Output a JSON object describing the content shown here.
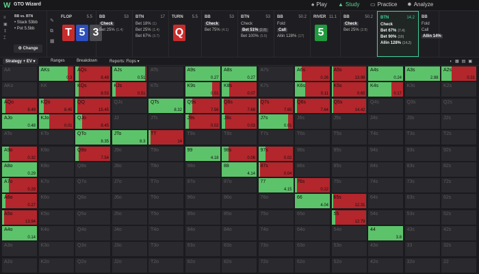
{
  "app": {
    "name": "GTO Wizard"
  },
  "nav": [
    {
      "label": "Play",
      "icon": "spade-icon",
      "active": false
    },
    {
      "label": "Study",
      "icon": "graduation-cap-icon",
      "active": true
    },
    {
      "label": "Practice",
      "icon": "cards-icon",
      "active": false
    },
    {
      "label": "Analyze",
      "icon": "sun-icon",
      "active": false
    }
  ],
  "spot": {
    "title": "BB vs. BTN",
    "stack": "Stack 53bb",
    "pot": "Pot 5.5bb",
    "change_label": "Change"
  },
  "panels": [
    {
      "head": "FLOP",
      "num": "5.5",
      "cards": [
        {
          "rank": "T",
          "color": "#c72c2c"
        },
        {
          "rank": "5",
          "color": "#2d4fbf"
        },
        {
          "rank": "3",
          "color": "#4a4a4f"
        }
      ]
    },
    {
      "head": "BB",
      "num": "53",
      "options": [
        {
          "label": "Check",
          "amount": "",
          "selected": true
        },
        {
          "label": "Bet 25%",
          "amount": "(1.4)",
          "selected": false
        }
      ]
    },
    {
      "head": "BTN",
      "num": "17",
      "options": [
        {
          "label": "Bet 18%",
          "amount": "(1)",
          "selected": false
        },
        {
          "label": "Bet 25%",
          "amount": "(1.4)",
          "selected": false
        },
        {
          "label": "Bet 67%",
          "amount": "(3.7)",
          "selected": false
        }
      ]
    },
    {
      "head": "TURN",
      "num": "5.5",
      "cards": [
        {
          "rank": "Q",
          "color": "#c72c2c"
        }
      ]
    },
    {
      "head": "BB",
      "num": "53",
      "options": [
        {
          "label": "Check",
          "amount": "",
          "selected": true
        },
        {
          "label": "Bet 75%",
          "amount": "(4.1)",
          "selected": false
        }
      ]
    },
    {
      "head": "BTN",
      "num": "53",
      "options": [
        {
          "label": "Check",
          "amount": "",
          "selected": false
        },
        {
          "label": "Bet 51%",
          "amount": "(2.8)",
          "selected": true
        },
        {
          "label": "Bet 100%",
          "amount": "(5.5)",
          "selected": false
        }
      ]
    },
    {
      "head": "BB",
      "num": "50.2",
      "options": [
        {
          "label": "Fold",
          "amount": "",
          "selected": false
        },
        {
          "label": "Call",
          "amount": "",
          "selected": true
        },
        {
          "label": "Allin 128%",
          "amount": "(17)",
          "selected": false
        }
      ]
    },
    {
      "head": "RIVER",
      "num": "11.1",
      "cards": [
        {
          "rank": "5",
          "color": "#1f9a3e"
        }
      ]
    },
    {
      "head": "BB",
      "num": "50.2",
      "options": [
        {
          "label": "Check",
          "amount": "",
          "selected": true
        },
        {
          "label": "Bet 25%",
          "amount": "(2.8)",
          "selected": false
        }
      ]
    },
    {
      "head": "BTN",
      "num": "14.2",
      "active": true,
      "options": [
        {
          "label": "Check",
          "amount": "",
          "selected": false
        },
        {
          "label": "Bet 67%",
          "amount": "(7.4)",
          "selected": false
        },
        {
          "label": "Bet 90%",
          "amount": "(10)",
          "selected": false
        },
        {
          "label": "Allin 128%",
          "amount": "(14.2)",
          "selected": false
        }
      ]
    },
    {
      "head": "BB",
      "num": "",
      "options": [
        {
          "label": "Fold",
          "amount": "",
          "selected": false
        },
        {
          "label": "Call",
          "amount": "",
          "selected": false
        },
        {
          "label": "Allin 14%",
          "amount": "",
          "selected": true
        }
      ]
    }
  ],
  "tabs": [
    {
      "label": "Strategy + EV",
      "active": true
    },
    {
      "label": "Ranges",
      "active": false
    },
    {
      "label": "Breakdown",
      "active": false
    },
    {
      "label": "Reports: Flops",
      "active": false
    }
  ],
  "colors": {
    "green": "#5cc36a",
    "red": "#b3262c",
    "darkred": "#7a1a1f",
    "empty": "#2a2a2e"
  },
  "ranks": [
    "A",
    "K",
    "Q",
    "J",
    "T",
    "9",
    "8",
    "7",
    "6",
    "5",
    "4",
    "3",
    "2"
  ],
  "matrix": [
    [
      {
        "v": ""
      },
      {
        "g": 0.84,
        "r": 0.16,
        "v": "0.3"
      },
      {
        "g": 0.1,
        "r": 0.9,
        "v": "8.48"
      },
      {
        "g": 0.96,
        "r": 0.04,
        "v": "0.51"
      },
      {
        "v": ""
      },
      {
        "g": 1,
        "v": "0.27"
      },
      {
        "g": 1,
        "v": "0.27"
      },
      {
        "v": ""
      },
      {
        "g": 0.2,
        "r": 0.8,
        "v": "0.26"
      },
      {
        "g": 0.05,
        "r": 0.95,
        "v": "13.98"
      },
      {
        "g": 1,
        "v": "0.24"
      },
      {
        "g": 1,
        "v": "2.88"
      },
      {
        "g": 0.3,
        "r": 0.7,
        "v": "0.31"
      }
    ],
    [
      {
        "v": ""
      },
      {
        "v": ""
      },
      {
        "g": 0.1,
        "r": 0.9,
        "v": "8.53"
      },
      {
        "g": 0.1,
        "r": 0.9,
        "v": "0.51"
      },
      {
        "v": ""
      },
      {
        "g": 0.78,
        "r": 0.22,
        "v": "0.01"
      },
      {
        "g": 0.22,
        "r": 0.78,
        "v": "0.07"
      },
      {
        "v": ""
      },
      {
        "g": 0.3,
        "r": 0.7,
        "v": "0.11"
      },
      {
        "g": 0.05,
        "r": 0.95,
        "v": "0.65"
      },
      {
        "g": 0.66,
        "r": 0.34,
        "v": "0.17"
      },
      {
        "v": ""
      },
      {
        "v": ""
      }
    ],
    [
      {
        "g": 0.1,
        "r": 0.9,
        "v": "8.49"
      },
      {
        "g": 0.15,
        "r": 0.85,
        "v": "8.45"
      },
      {
        "g": 0.05,
        "r": 0.95,
        "v": "15.45"
      },
      {
        "v": ""
      },
      {
        "g": 1,
        "v": "8.32"
      },
      {
        "g": 0.2,
        "r": 0.8,
        "v": "7.56"
      },
      {
        "g": 0.05,
        "r": 0.95,
        "v": "7.68"
      },
      {
        "g": 0.05,
        "r": 0.95,
        "v": "7.65"
      },
      {
        "g": 0.05,
        "r": 0.95,
        "v": "7.64"
      },
      {
        "g": 0.05,
        "r": 0.95,
        "v": "14.42"
      },
      {
        "v": ""
      },
      {
        "v": ""
      },
      {
        "v": ""
      }
    ],
    [
      {
        "g": 1,
        "v": "0.48"
      },
      {
        "g": 0.3,
        "r": 0.7,
        "v": "0.01"
      },
      {
        "g": 0.2,
        "r": 0.8,
        "v": "8.45"
      },
      {
        "v": ""
      },
      {
        "v": ""
      },
      {
        "g": 0.1,
        "r": 0.9,
        "v": "0.02"
      },
      {
        "g": 0.1,
        "r": 0.9,
        "v": "0.03"
      },
      {
        "g": 0.86,
        "r": 0.14,
        "v": "0.01"
      },
      {
        "v": ""
      },
      {
        "v": ""
      },
      {
        "v": ""
      },
      {
        "v": ""
      },
      {
        "v": ""
      }
    ],
    [
      {
        "v": ""
      },
      {
        "v": ""
      },
      {
        "g": 1,
        "v": "8.35"
      },
      {
        "g": 1,
        "v": "8.3"
      },
      {
        "g": 0.05,
        "r": 0.95,
        "v": "14"
      },
      {
        "v": ""
      },
      {
        "v": ""
      },
      {
        "v": ""
      },
      {
        "v": ""
      },
      {
        "v": ""
      },
      {
        "v": ""
      },
      {
        "v": ""
      },
      {
        "v": ""
      }
    ],
    [
      {
        "g": 0.2,
        "r": 0.8,
        "v": "0.32"
      },
      {
        "v": ""
      },
      {
        "g": 0.1,
        "r": 0.9,
        "v": "7.54"
      },
      {
        "v": ""
      },
      {
        "v": ""
      },
      {
        "g": 1,
        "v": "4.18"
      },
      {
        "g": 0.2,
        "r": 0.8,
        "v": "0.06"
      },
      {
        "g": 0.2,
        "r": 0.8,
        "v": "0.02"
      },
      {
        "v": ""
      },
      {
        "v": ""
      },
      {
        "v": ""
      },
      {
        "v": ""
      },
      {
        "v": ""
      }
    ],
    [
      {
        "g": 1,
        "v": "0.29"
      },
      {
        "v": ""
      },
      {
        "v": ""
      },
      {
        "v": ""
      },
      {
        "v": ""
      },
      {
        "v": ""
      },
      {
        "g": 1,
        "v": "4.14"
      },
      {
        "g": 0.05,
        "r": 0.95,
        "v": "0.04"
      },
      {
        "v": ""
      },
      {
        "v": ""
      },
      {
        "v": ""
      },
      {
        "v": ""
      },
      {
        "v": ""
      }
    ],
    [
      {
        "g": 0.2,
        "r": 0.8,
        "v": "0.29"
      },
      {
        "v": ""
      },
      {
        "v": ""
      },
      {
        "v": ""
      },
      {
        "v": ""
      },
      {
        "v": ""
      },
      {
        "v": ""
      },
      {
        "g": 1,
        "v": "4.15"
      },
      {
        "g": 0.05,
        "r": 0.95,
        "v": "0.22"
      },
      {
        "v": ""
      },
      {
        "v": ""
      },
      {
        "v": ""
      },
      {
        "v": ""
      }
    ],
    [
      {
        "g": 0.1,
        "r": 0.9,
        "v": "0.27"
      },
      {
        "v": ""
      },
      {
        "v": ""
      },
      {
        "v": ""
      },
      {
        "v": ""
      },
      {
        "v": ""
      },
      {
        "v": ""
      },
      {
        "v": ""
      },
      {
        "g": 1,
        "v": "4.04"
      },
      {
        "g": 0.05,
        "r": 0.95,
        "v": "12.31"
      },
      {
        "v": ""
      },
      {
        "v": ""
      },
      {
        "v": ""
      }
    ],
    [
      {
        "g": 0.05,
        "r": 0.95,
        "v": "13.94"
      },
      {
        "v": ""
      },
      {
        "v": ""
      },
      {
        "v": ""
      },
      {
        "v": ""
      },
      {
        "v": ""
      },
      {
        "v": ""
      },
      {
        "v": ""
      },
      {
        "v": ""
      },
      {
        "g": 0.1,
        "r": 0.9,
        "v": "12.79"
      },
      {
        "v": ""
      },
      {
        "v": ""
      },
      {
        "v": ""
      }
    ],
    [
      {
        "g": 1,
        "v": "0.14"
      },
      {
        "v": ""
      },
      {
        "v": ""
      },
      {
        "v": ""
      },
      {
        "v": ""
      },
      {
        "v": ""
      },
      {
        "v": ""
      },
      {
        "v": ""
      },
      {
        "v": ""
      },
      {
        "v": ""
      },
      {
        "g": 1,
        "v": "3.8"
      },
      {
        "v": ""
      },
      {
        "v": ""
      }
    ],
    [
      {
        "v": ""
      },
      {
        "v": ""
      },
      {
        "v": ""
      },
      {
        "v": ""
      },
      {
        "v": ""
      },
      {
        "v": ""
      },
      {
        "v": ""
      },
      {
        "v": ""
      },
      {
        "v": ""
      },
      {
        "v": ""
      },
      {
        "v": ""
      },
      {
        "v": ""
      },
      {
        "v": ""
      }
    ],
    [
      {
        "v": ""
      },
      {
        "v": ""
      },
      {
        "v": ""
      },
      {
        "v": ""
      },
      {
        "v": ""
      },
      {
        "v": ""
      },
      {
        "v": ""
      },
      {
        "v": ""
      },
      {
        "v": ""
      },
      {
        "v": ""
      },
      {
        "v": ""
      },
      {
        "v": ""
      },
      {
        "v": ""
      }
    ]
  ]
}
